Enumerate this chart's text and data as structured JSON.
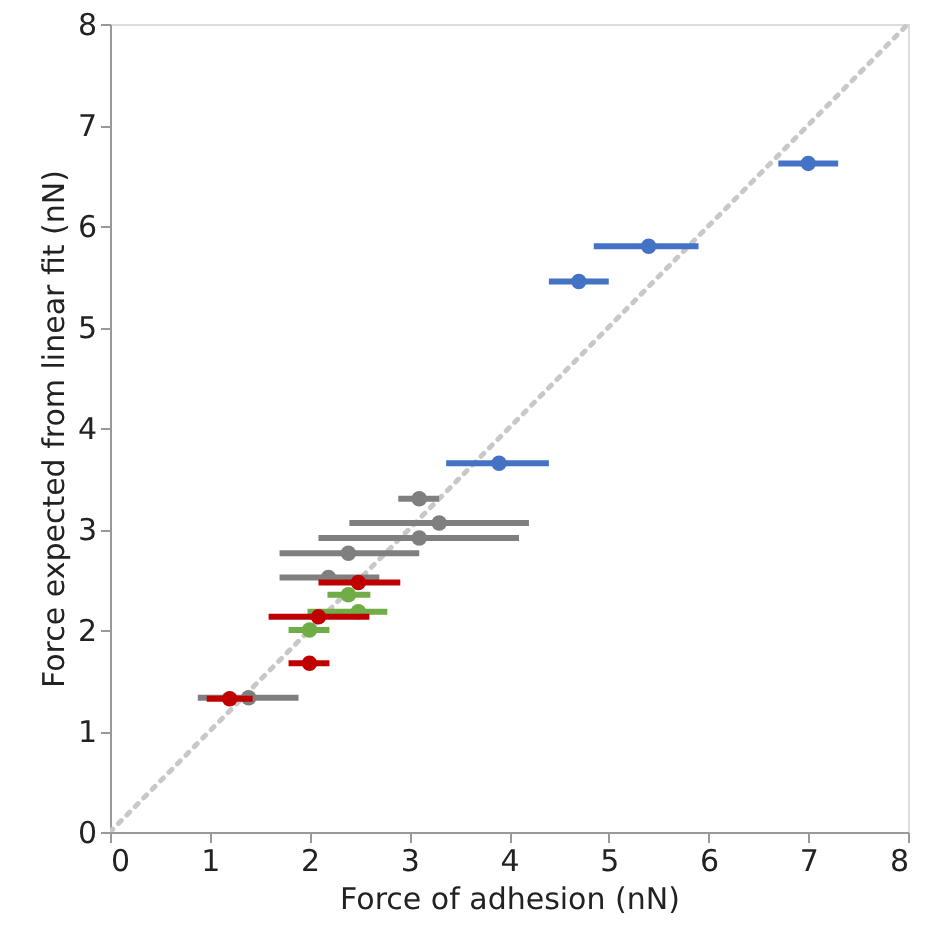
{
  "chart_data": {
    "type": "scatter",
    "xlabel": "Force of adhesion (nN)",
    "ylabel": "Force expected from linear fit (nN)",
    "xlim": [
      0,
      8
    ],
    "ylim": [
      0,
      8
    ],
    "xticks": [
      0,
      1,
      2,
      3,
      4,
      5,
      6,
      7,
      8
    ],
    "yticks": [
      0,
      1,
      2,
      3,
      4,
      5,
      6,
      7,
      8
    ],
    "grid": false,
    "marker": "circle",
    "series": [
      {
        "type": "line",
        "color": "#c8c8c8",
        "line_style": "dotted",
        "marker": "none",
        "x": [
          0,
          8
        ],
        "values": [
          0,
          8
        ]
      },
      {
        "color": "#7f7f7f",
        "x": [
          3.1,
          3.3,
          3.1,
          2.39,
          2.19,
          1.39
        ],
        "values": [
          3.3,
          3.06,
          2.91,
          2.76,
          2.52,
          1.33
        ],
        "xerrors": [
          [
            2.89,
            3.3
          ],
          [
            2.4,
            4.2
          ],
          [
            2.09,
            4.1
          ],
          [
            1.7,
            3.1
          ],
          [
            1.7,
            2.7
          ],
          [
            0.88,
            1.89
          ]
        ]
      },
      {
        "color": "#4472c4",
        "x": [
          7.0,
          5.4,
          4.7,
          3.9
        ],
        "values": [
          6.62,
          5.8,
          5.45,
          3.65
        ],
        "xerrors": [
          [
            6.7,
            7.3
          ],
          [
            4.85,
            5.9
          ],
          [
            4.4,
            5.0
          ],
          [
            3.37,
            4.4
          ]
        ]
      },
      {
        "color": "#70ad47",
        "x": [
          2.39,
          2.49,
          2.0
        ],
        "values": [
          2.35,
          2.18,
          2.0
        ],
        "xerrors": [
          [
            2.18,
            2.61
          ],
          [
            1.98,
            2.78
          ],
          [
            1.79,
            2.2
          ]
        ]
      },
      {
        "color": "#c00000",
        "x": [
          2.49,
          2.09,
          2.0,
          1.2
        ],
        "values": [
          2.47,
          2.13,
          1.67,
          1.32
        ],
        "xerrors": [
          [
            2.09,
            2.91
          ],
          [
            1.59,
            2.6
          ],
          [
            1.79,
            2.2
          ],
          [
            0.97,
            1.43
          ]
        ]
      }
    ]
  }
}
